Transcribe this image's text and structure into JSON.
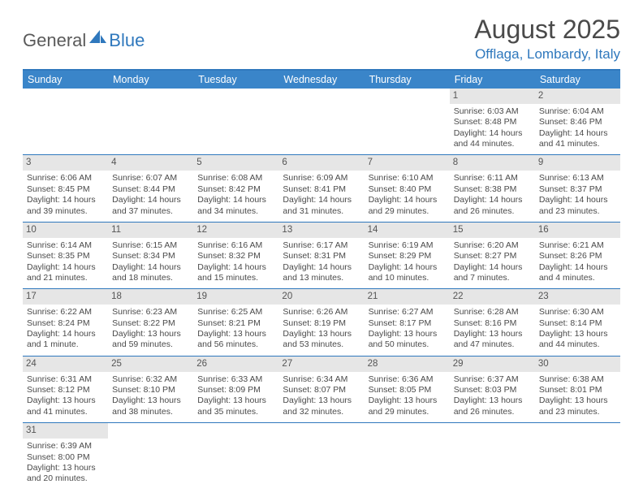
{
  "logo": {
    "part1": "General",
    "part2": "Blue"
  },
  "title": "August 2025",
  "location": "Offlaga, Lombardy, Italy",
  "colors": {
    "header_bg": "#3a85c9",
    "border": "#2f78bd",
    "daynum_bg": "#e6e6e6",
    "text": "#4a4a4a",
    "accent": "#2f78bd"
  },
  "weekdays": [
    "Sunday",
    "Monday",
    "Tuesday",
    "Wednesday",
    "Thursday",
    "Friday",
    "Saturday"
  ],
  "weeks": [
    [
      null,
      null,
      null,
      null,
      null,
      {
        "n": "1",
        "sunrise": "Sunrise: 6:03 AM",
        "sunset": "Sunset: 8:48 PM",
        "daylight": "Daylight: 14 hours and 44 minutes."
      },
      {
        "n": "2",
        "sunrise": "Sunrise: 6:04 AM",
        "sunset": "Sunset: 8:46 PM",
        "daylight": "Daylight: 14 hours and 41 minutes."
      }
    ],
    [
      {
        "n": "3",
        "sunrise": "Sunrise: 6:06 AM",
        "sunset": "Sunset: 8:45 PM",
        "daylight": "Daylight: 14 hours and 39 minutes."
      },
      {
        "n": "4",
        "sunrise": "Sunrise: 6:07 AM",
        "sunset": "Sunset: 8:44 PM",
        "daylight": "Daylight: 14 hours and 37 minutes."
      },
      {
        "n": "5",
        "sunrise": "Sunrise: 6:08 AM",
        "sunset": "Sunset: 8:42 PM",
        "daylight": "Daylight: 14 hours and 34 minutes."
      },
      {
        "n": "6",
        "sunrise": "Sunrise: 6:09 AM",
        "sunset": "Sunset: 8:41 PM",
        "daylight": "Daylight: 14 hours and 31 minutes."
      },
      {
        "n": "7",
        "sunrise": "Sunrise: 6:10 AM",
        "sunset": "Sunset: 8:40 PM",
        "daylight": "Daylight: 14 hours and 29 minutes."
      },
      {
        "n": "8",
        "sunrise": "Sunrise: 6:11 AM",
        "sunset": "Sunset: 8:38 PM",
        "daylight": "Daylight: 14 hours and 26 minutes."
      },
      {
        "n": "9",
        "sunrise": "Sunrise: 6:13 AM",
        "sunset": "Sunset: 8:37 PM",
        "daylight": "Daylight: 14 hours and 23 minutes."
      }
    ],
    [
      {
        "n": "10",
        "sunrise": "Sunrise: 6:14 AM",
        "sunset": "Sunset: 8:35 PM",
        "daylight": "Daylight: 14 hours and 21 minutes."
      },
      {
        "n": "11",
        "sunrise": "Sunrise: 6:15 AM",
        "sunset": "Sunset: 8:34 PM",
        "daylight": "Daylight: 14 hours and 18 minutes."
      },
      {
        "n": "12",
        "sunrise": "Sunrise: 6:16 AM",
        "sunset": "Sunset: 8:32 PM",
        "daylight": "Daylight: 14 hours and 15 minutes."
      },
      {
        "n": "13",
        "sunrise": "Sunrise: 6:17 AM",
        "sunset": "Sunset: 8:31 PM",
        "daylight": "Daylight: 14 hours and 13 minutes."
      },
      {
        "n": "14",
        "sunrise": "Sunrise: 6:19 AM",
        "sunset": "Sunset: 8:29 PM",
        "daylight": "Daylight: 14 hours and 10 minutes."
      },
      {
        "n": "15",
        "sunrise": "Sunrise: 6:20 AM",
        "sunset": "Sunset: 8:27 PM",
        "daylight": "Daylight: 14 hours and 7 minutes."
      },
      {
        "n": "16",
        "sunrise": "Sunrise: 6:21 AM",
        "sunset": "Sunset: 8:26 PM",
        "daylight": "Daylight: 14 hours and 4 minutes."
      }
    ],
    [
      {
        "n": "17",
        "sunrise": "Sunrise: 6:22 AM",
        "sunset": "Sunset: 8:24 PM",
        "daylight": "Daylight: 14 hours and 1 minute."
      },
      {
        "n": "18",
        "sunrise": "Sunrise: 6:23 AM",
        "sunset": "Sunset: 8:22 PM",
        "daylight": "Daylight: 13 hours and 59 minutes."
      },
      {
        "n": "19",
        "sunrise": "Sunrise: 6:25 AM",
        "sunset": "Sunset: 8:21 PM",
        "daylight": "Daylight: 13 hours and 56 minutes."
      },
      {
        "n": "20",
        "sunrise": "Sunrise: 6:26 AM",
        "sunset": "Sunset: 8:19 PM",
        "daylight": "Daylight: 13 hours and 53 minutes."
      },
      {
        "n": "21",
        "sunrise": "Sunrise: 6:27 AM",
        "sunset": "Sunset: 8:17 PM",
        "daylight": "Daylight: 13 hours and 50 minutes."
      },
      {
        "n": "22",
        "sunrise": "Sunrise: 6:28 AM",
        "sunset": "Sunset: 8:16 PM",
        "daylight": "Daylight: 13 hours and 47 minutes."
      },
      {
        "n": "23",
        "sunrise": "Sunrise: 6:30 AM",
        "sunset": "Sunset: 8:14 PM",
        "daylight": "Daylight: 13 hours and 44 minutes."
      }
    ],
    [
      {
        "n": "24",
        "sunrise": "Sunrise: 6:31 AM",
        "sunset": "Sunset: 8:12 PM",
        "daylight": "Daylight: 13 hours and 41 minutes."
      },
      {
        "n": "25",
        "sunrise": "Sunrise: 6:32 AM",
        "sunset": "Sunset: 8:10 PM",
        "daylight": "Daylight: 13 hours and 38 minutes."
      },
      {
        "n": "26",
        "sunrise": "Sunrise: 6:33 AM",
        "sunset": "Sunset: 8:09 PM",
        "daylight": "Daylight: 13 hours and 35 minutes."
      },
      {
        "n": "27",
        "sunrise": "Sunrise: 6:34 AM",
        "sunset": "Sunset: 8:07 PM",
        "daylight": "Daylight: 13 hours and 32 minutes."
      },
      {
        "n": "28",
        "sunrise": "Sunrise: 6:36 AM",
        "sunset": "Sunset: 8:05 PM",
        "daylight": "Daylight: 13 hours and 29 minutes."
      },
      {
        "n": "29",
        "sunrise": "Sunrise: 6:37 AM",
        "sunset": "Sunset: 8:03 PM",
        "daylight": "Daylight: 13 hours and 26 minutes."
      },
      {
        "n": "30",
        "sunrise": "Sunrise: 6:38 AM",
        "sunset": "Sunset: 8:01 PM",
        "daylight": "Daylight: 13 hours and 23 minutes."
      }
    ],
    [
      {
        "n": "31",
        "sunrise": "Sunrise: 6:39 AM",
        "sunset": "Sunset: 8:00 PM",
        "daylight": "Daylight: 13 hours and 20 minutes."
      },
      null,
      null,
      null,
      null,
      null,
      null
    ]
  ]
}
